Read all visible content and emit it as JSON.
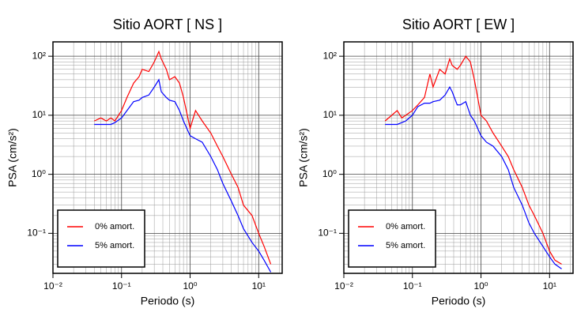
{
  "chart_data": [
    {
      "type": "line",
      "title": "Sitio AORT [ NS ]",
      "xlabel": "Periodo (s)",
      "ylabel": "PSA (cm/s²)",
      "xscale": "log",
      "yscale": "log",
      "grid": true,
      "legend": "lower left",
      "xlim": [
        0.01,
        22
      ],
      "ylim": [
        0.021,
        175
      ],
      "xticks": [
        {
          "value": 0.01,
          "label": "10⁻²"
        },
        {
          "value": 0.1,
          "label": "10⁻¹"
        },
        {
          "value": 1,
          "label": "10⁰"
        },
        {
          "value": 10,
          "label": "10¹"
        }
      ],
      "yticks": [
        {
          "value": 0.1,
          "label": "10⁻¹"
        },
        {
          "value": 1,
          "label": "10⁰"
        },
        {
          "value": 10,
          "label": "10¹"
        },
        {
          "value": 100,
          "label": "10²"
        }
      ],
      "x": [
        0.04,
        0.05,
        0.06,
        0.07,
        0.08,
        0.1,
        0.12,
        0.15,
        0.18,
        0.2,
        0.25,
        0.3,
        0.35,
        0.38,
        0.45,
        0.5,
        0.6,
        0.7,
        0.8,
        1.0,
        1.2,
        1.5,
        2,
        2.5,
        3,
        4,
        5,
        6,
        8,
        10,
        12,
        15
      ],
      "series": [
        {
          "name": "0% amort.",
          "color": "#ff0000",
          "values": [
            8,
            9,
            8,
            9,
            8,
            12,
            20,
            35,
            45,
            60,
            55,
            80,
            120,
            90,
            60,
            40,
            45,
            35,
            20,
            6,
            12,
            8,
            5,
            3,
            2,
            1,
            0.6,
            0.3,
            0.2,
            0.1,
            0.06,
            0.03
          ]
        },
        {
          "name": "5% amort.",
          "color": "#0000ff",
          "values": [
            7,
            7,
            7,
            7,
            7.5,
            9,
            12,
            17,
            18,
            20,
            22,
            30,
            40,
            25,
            20,
            18,
            17,
            12,
            8,
            4.5,
            4,
            3.5,
            2,
            1.2,
            0.7,
            0.35,
            0.2,
            0.12,
            0.07,
            0.05,
            0.035,
            0.022
          ]
        }
      ]
    },
    {
      "type": "line",
      "title": "Sitio AORT [ EW ]",
      "xlabel": "Periodo (s)",
      "ylabel": "PSA (cm/s²)",
      "xscale": "log",
      "yscale": "log",
      "grid": true,
      "legend": "lower left",
      "xlim": [
        0.01,
        22
      ],
      "ylim": [
        0.021,
        175
      ],
      "xticks": [
        {
          "value": 0.01,
          "label": "10⁻²"
        },
        {
          "value": 0.1,
          "label": "10⁻¹"
        },
        {
          "value": 1,
          "label": "10⁰"
        },
        {
          "value": 10,
          "label": "10¹"
        }
      ],
      "yticks": [
        {
          "value": 0.1,
          "label": "10⁻¹"
        },
        {
          "value": 1,
          "label": "10⁰"
        },
        {
          "value": 10,
          "label": "10¹"
        },
        {
          "value": 100,
          "label": "10²"
        }
      ],
      "x": [
        0.04,
        0.05,
        0.06,
        0.07,
        0.08,
        0.1,
        0.12,
        0.15,
        0.18,
        0.2,
        0.25,
        0.3,
        0.35,
        0.38,
        0.45,
        0.5,
        0.6,
        0.7,
        0.8,
        1.0,
        1.2,
        1.5,
        2,
        2.5,
        3,
        4,
        5,
        6,
        8,
        10,
        12,
        15
      ],
      "series": [
        {
          "name": "0% amort.",
          "color": "#ff0000",
          "values": [
            8,
            10,
            12,
            9,
            10,
            12,
            15,
            20,
            50,
            30,
            60,
            50,
            90,
            70,
            60,
            70,
            100,
            80,
            40,
            10,
            8,
            5,
            3,
            2,
            1.2,
            0.6,
            0.3,
            0.2,
            0.1,
            0.05,
            0.035,
            0.03
          ]
        },
        {
          "name": "5% amort.",
          "color": "#0000ff",
          "values": [
            7,
            7,
            7,
            7.5,
            8,
            10,
            14,
            16,
            16,
            17,
            18,
            22,
            30,
            25,
            15,
            15,
            17,
            10,
            8,
            4.5,
            3.5,
            3,
            2,
            1.2,
            0.6,
            0.3,
            0.15,
            0.1,
            0.06,
            0.04,
            0.03,
            0.025
          ]
        }
      ]
    }
  ]
}
